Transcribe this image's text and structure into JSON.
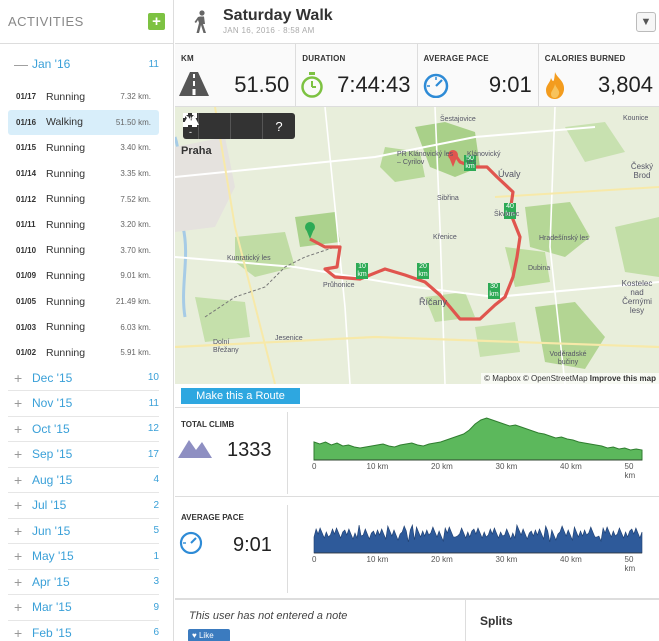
{
  "sidebar": {
    "title": "ACTIVITIES",
    "add_label": "+",
    "current_month": {
      "sign": "—",
      "label": "Jan '16",
      "count": "11"
    },
    "activities": [
      {
        "date": "01/17",
        "type": "Running",
        "km": "7.32 km."
      },
      {
        "date": "01/16",
        "type": "Walking",
        "km": "51.50 km.",
        "selected": true
      },
      {
        "date": "01/15",
        "type": "Running",
        "km": "3.40 km."
      },
      {
        "date": "01/14",
        "type": "Running",
        "km": "3.35 km."
      },
      {
        "date": "01/12",
        "type": "Running",
        "km": "7.52 km."
      },
      {
        "date": "01/11",
        "type": "Running",
        "km": "3.20 km."
      },
      {
        "date": "01/10",
        "type": "Running",
        "km": "3.70 km."
      },
      {
        "date": "01/09",
        "type": "Running",
        "km": "9.01 km."
      },
      {
        "date": "01/05",
        "type": "Running",
        "km": "21.49 km."
      },
      {
        "date": "01/03",
        "type": "Running",
        "km": "6.03 km."
      },
      {
        "date": "01/02",
        "type": "Running",
        "km": "5.91 km."
      }
    ],
    "months": [
      {
        "sign": "+",
        "label": "Dec '15",
        "count": "10"
      },
      {
        "sign": "+",
        "label": "Nov '15",
        "count": "11"
      },
      {
        "sign": "+",
        "label": "Oct '15",
        "count": "12"
      },
      {
        "sign": "+",
        "label": "Sep '15",
        "count": "17"
      },
      {
        "sign": "+",
        "label": "Aug '15",
        "count": "4"
      },
      {
        "sign": "+",
        "label": "Jul '15",
        "count": "2"
      },
      {
        "sign": "+",
        "label": "Jun '15",
        "count": "5"
      },
      {
        "sign": "+",
        "label": "May '15",
        "count": "1"
      },
      {
        "sign": "+",
        "label": "Apr '15",
        "count": "3"
      },
      {
        "sign": "+",
        "label": "Mar '15",
        "count": "9"
      },
      {
        "sign": "+",
        "label": "Feb '15",
        "count": "6"
      }
    ]
  },
  "header": {
    "title": "Saturday Walk",
    "date": "JAN 16, 2016",
    "sep": "·",
    "time": "8:58 AM",
    "dropdown_icon": "chevron-down-icon"
  },
  "stats": [
    {
      "label": "KM",
      "value": "51.50",
      "icon": "road-icon"
    },
    {
      "label": "DURATION",
      "value": "7:44:43",
      "icon": "stopwatch-icon"
    },
    {
      "label": "AVERAGE PACE",
      "value": "9:01",
      "icon": "speedometer-icon"
    },
    {
      "label": "CALORIES BURNED",
      "value": "3,804",
      "icon": "flame-icon"
    }
  ],
  "map": {
    "zoom_in": "+",
    "zoom_out": "-",
    "help": "?",
    "attribution_mapbox": "© Mapbox",
    "attribution_osm": "© OpenStreetMap",
    "attribution_improve": "Improve this map",
    "places": [
      "Praha",
      "Šestajovice",
      "PR Klánovický les – Cyrilov",
      "Klánovický les",
      "Úvaly",
      "Sibřina",
      "Škvorec",
      "Křenice",
      "Hradešínský les",
      "Dubina",
      "Kunratický les",
      "Průhonice",
      "Říčany",
      "Jesenice",
      "Dolní Břežany",
      "Kostelec nad Černými lesy",
      "Voděradské bučiny",
      "Český Brod",
      "Kounice"
    ],
    "km_markers": [
      "10",
      "20",
      "30",
      "40",
      "50"
    ],
    "km_unit": "km"
  },
  "route_button": "Make this a Route",
  "climb": {
    "label": "TOTAL CLIMB",
    "value": "1333",
    "icon": "mountain-icon",
    "x_ticks": [
      "0",
      "10 km",
      "20 km",
      "30 km",
      "40 km",
      "50 km"
    ],
    "color": "#5cb85c"
  },
  "pace": {
    "label": "AVERAGE PACE",
    "value": "9:01",
    "icon": "speedometer-icon",
    "x_ticks": [
      "0",
      "10 km",
      "20 km",
      "30 km",
      "40 km",
      "50 km"
    ],
    "color": "#2e5a9a"
  },
  "note": {
    "text": "This user has not entered a note",
    "like_label": "Like",
    "splits_label": "Splits"
  }
}
